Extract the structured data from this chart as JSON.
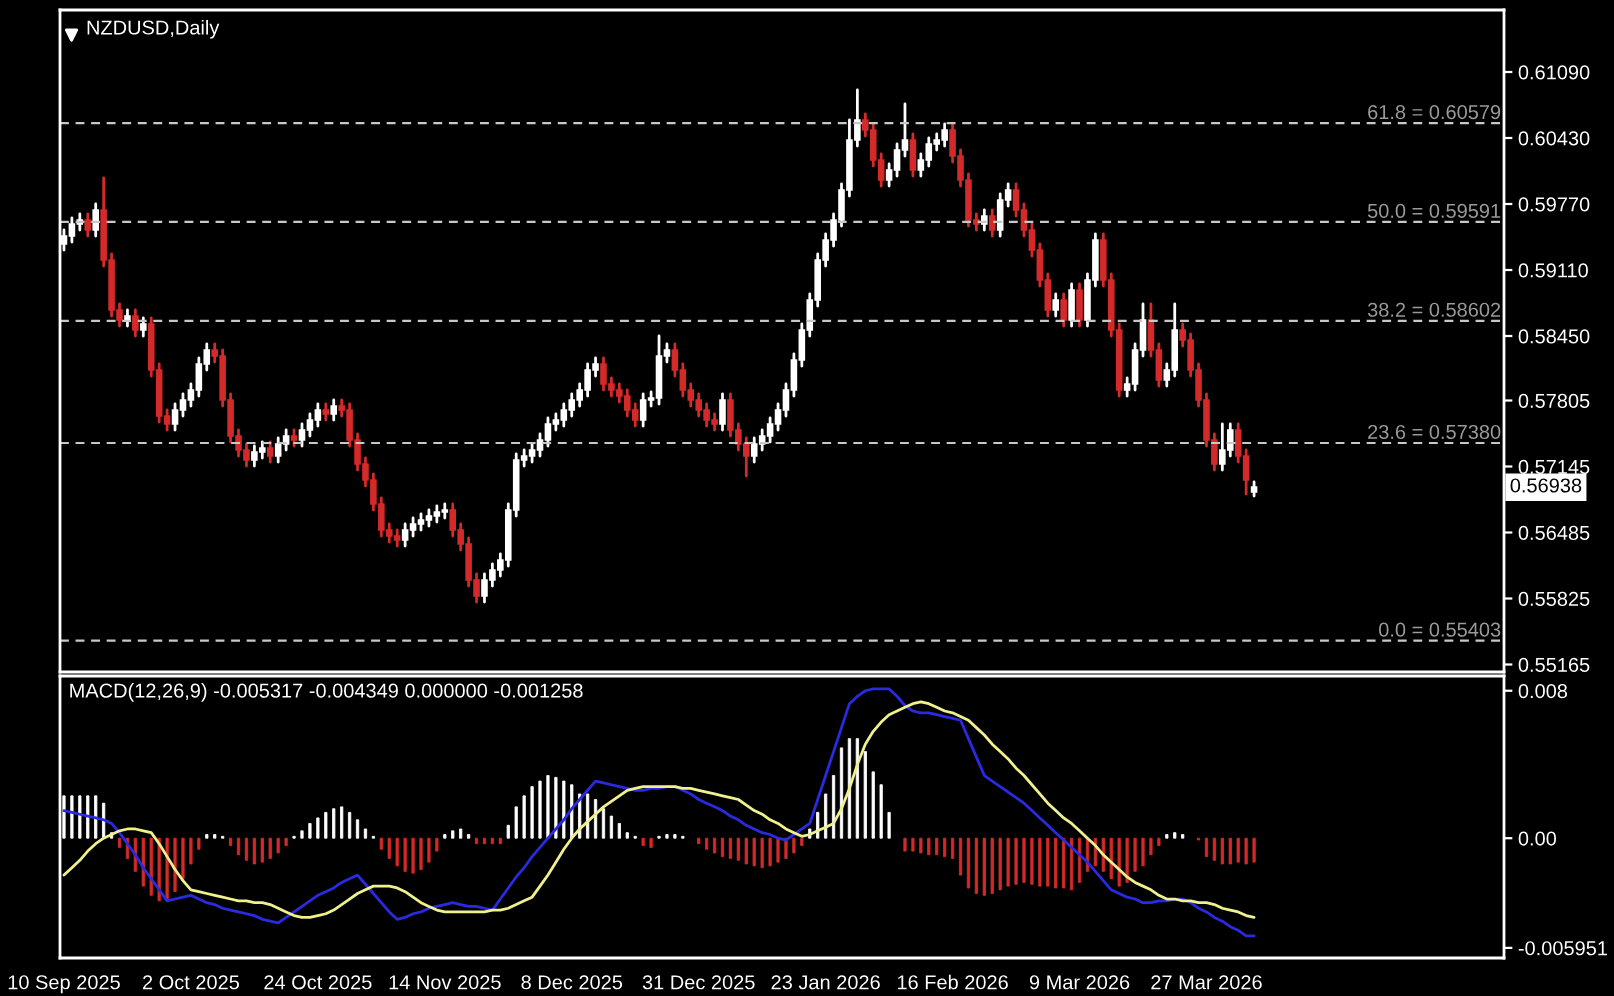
{
  "chart_data": [
    {
      "type": "candlestick",
      "title": "NZDUSD,Daily",
      "tick_labels": "y",
      "grid": false,
      "colors": [
        "#ffffff",
        "#ffffff",
        "#ffffff",
        "#d42a2a",
        "#ffffff",
        "#d42a2a",
        "#d42a2a",
        "#d42a2a",
        "#ffffff",
        "#d42a2a",
        "#ffffff",
        "#d42a2a",
        "#d42a2a",
        "#d42a2a",
        "#ffffff",
        "#ffffff",
        "#ffffff",
        "#ffffff",
        "#ffffff",
        "#d42a2a",
        "#d42a2a",
        "#d42a2a",
        "#d42a2a",
        "#d42a2a",
        "#ffffff",
        "#ffffff",
        "#d42a2a",
        "#ffffff",
        "#ffffff",
        "#d42a2a",
        "#ffffff",
        "#ffffff",
        "#ffffff",
        "#d42a2a",
        "#ffffff",
        "#d42a2a",
        "#d42a2a",
        "#d42a2a",
        "#d42a2a",
        "#d42a2a",
        "#d42a2a",
        "#d42a2a",
        "#d42a2a",
        "#ffffff",
        "#ffffff",
        "#ffffff",
        "#ffffff",
        "#ffffff",
        "#ffffff",
        "#d42a2a",
        "#d42a2a",
        "#d42a2a",
        "#d42a2a",
        "#ffffff",
        "#ffffff",
        "#ffffff",
        "#ffffff",
        "#ffffff",
        "#ffffff",
        "#ffffff",
        "#ffffff",
        "#ffffff",
        "#ffffff",
        "#ffffff",
        "#ffffff",
        "#ffffff",
        "#ffffff",
        "#ffffff",
        "#d42a2a",
        "#d42a2a",
        "#d42a2a",
        "#d42a2a",
        "#d42a2a",
        "#ffffff",
        "#ffffff",
        "#ffffff",
        "#ffffff",
        "#d42a2a",
        "#d42a2a",
        "#d42a2a",
        "#d42a2a",
        "#d42a2a",
        "#d42a2a",
        "#ffffff",
        "#d42a2a",
        "#d42a2a",
        "#d42a2a",
        "#ffffff",
        "#ffffff",
        "#ffffff",
        "#ffffff",
        "#ffffff",
        "#ffffff",
        "#ffffff",
        "#ffffff",
        "#ffffff",
        "#ffffff",
        "#ffffff",
        "#ffffff",
        "#ffffff",
        "#ffffff",
        "#d42a2a",
        "#d42a2a",
        "#d42a2a",
        "#ffffff",
        "#ffffff",
        "#ffffff",
        "#d42a2a",
        "#ffffff",
        "#ffffff",
        "#ffffff",
        "#ffffff",
        "#d42a2a",
        "#d42a2a",
        "#d42a2a",
        "#d42a2a",
        "#ffffff",
        "#d42a2a",
        "#ffffff",
        "#ffffff",
        "#d42a2a",
        "#d42a2a",
        "#d42a2a",
        "#d42a2a",
        "#d42a2a",
        "#ffffff",
        "#d42a2a",
        "#ffffff",
        "#d42a2a",
        "#ffffff",
        "#ffffff",
        "#d42a2a",
        "#d42a2a",
        "#d42a2a",
        "#ffffff",
        "#ffffff",
        "#ffffff",
        "#d42a2a",
        "#d42a2a",
        "#ffffff",
        "#ffffff",
        "#d42a2a",
        "#d42a2a",
        "#d42a2a",
        "#d42a2a",
        "#d42a2a",
        "#ffffff",
        "#ffffff",
        "#d42a2a",
        "#d42a2a",
        "#ffffff",
        null,
        null,
        null,
        null,
        null,
        null,
        null,
        null,
        null,
        null,
        null,
        null,
        null,
        null,
        null,
        null,
        null,
        null,
        null,
        null,
        null,
        null,
        null,
        null,
        null,
        null,
        null,
        null,
        null,
        null,
        null
      ],
      "categories": [
        null,
        null,
        null,
        null,
        null,
        null,
        null,
        null,
        null,
        null,
        null,
        null,
        null,
        null,
        null,
        null,
        null,
        null,
        null,
        null,
        null,
        null,
        null,
        null,
        null,
        null,
        null,
        null,
        null,
        null,
        null,
        null,
        null,
        null,
        null,
        null,
        null,
        null,
        null,
        null,
        null,
        null,
        null,
        null,
        null,
        null,
        null,
        null,
        null,
        null,
        null,
        null,
        null,
        null,
        null,
        null,
        null,
        null,
        null,
        null,
        null,
        null,
        null,
        null,
        null,
        null,
        null,
        null,
        null,
        null,
        null,
        null,
        null,
        null,
        null,
        null,
        null,
        null,
        null,
        null,
        null,
        null,
        null,
        null,
        null,
        null,
        null,
        null,
        null,
        null,
        null,
        null,
        null,
        null,
        null,
        null,
        null,
        null,
        null,
        null,
        null,
        null,
        null,
        null,
        null,
        null,
        null,
        null,
        null,
        null,
        null,
        null,
        null,
        null,
        null,
        null,
        null,
        null,
        null,
        null,
        null,
        null,
        null,
        null,
        null,
        null,
        null,
        null,
        null,
        null,
        null,
        null,
        null,
        null,
        null,
        null,
        null,
        null,
        null,
        null,
        null,
        null,
        null,
        null,
        null,
        null,
        null,
        null,
        null,
        null,
        null,
        null,
        null,
        null,
        null,
        null,
        null,
        null,
        null,
        null,
        null,
        null,
        null,
        null,
        null,
        null,
        null,
        null,
        null,
        null,
        null,
        null,
        null,
        null,
        null,
        null,
        null,
        null,
        null,
        null,
        null,
        null
      ],
      "ylim": [
        0.5509,
        0.6171
      ],
      "yticks": [
        {
          "value": 0.6109,
          "label": "0.61090"
        },
        {
          "value": 0.6043,
          "label": "0.60430"
        },
        {
          "value": 0.5977,
          "label": "0.59770"
        },
        {
          "value": 0.5911,
          "label": "0.59110"
        },
        {
          "value": 0.5845,
          "label": "0.58450"
        },
        0.57805,
        0.57145,
        0.56485,
        0.55825,
        0.55165
      ],
      "ref_lines": [
        {
          "axis": "y",
          "value": 0.60579,
          "label": "61.8 = 0.60579",
          "color": "#c8c8c8",
          "line_style": "dashed"
        },
        {
          "axis": "y",
          "value": 0.59591,
          "label": "50.0 = 0.59591",
          "color": "#c8c8c8",
          "line_style": "dashed"
        },
        {
          "axis": "y",
          "value": 0.58602,
          "label": "38.2 = 0.58602",
          "color": "#c8c8c8",
          "line_style": "dashed"
        },
        {
          "axis": "y",
          "value": 0.5738,
          "label": "23.6 = 0.57380",
          "color": "#c8c8c8",
          "line_style": "dashed"
        },
        {
          "axis": "y",
          "value": 0.55403,
          "label": "0.0 = 0.55403",
          "color": "#c8c8c8",
          "line_style": "dashed"
        }
      ],
      "annotations": [
        "0.56938"
      ],
      "ohlc": [
        [
          0.5937,
          0.5951,
          0.5931,
          0.5945
        ],
        [
          0.5945,
          0.5963,
          0.5939,
          0.5957
        ],
        [
          0.5957,
          0.5967,
          0.5951,
          0.5961
        ],
        [
          0.5961,
          0.5967,
          0.5945,
          0.5951
        ],
        [
          0.5951,
          0.5977,
          0.5945,
          0.5971
        ],
        [
          0.5971,
          0.6003,
          0.5915,
          0.5921
        ],
        [
          0.5921,
          0.5927,
          0.5865,
          0.5871
        ],
        [
          0.5871,
          0.5877,
          0.5855,
          0.5861
        ],
        [
          0.5861,
          0.5871,
          0.5855,
          0.5865
        ],
        [
          0.5865,
          0.5871,
          0.5845,
          0.5851
        ],
        [
          0.5851,
          0.5863,
          0.5845,
          0.5857
        ],
        [
          0.5857,
          0.5863,
          0.5805,
          0.5811
        ],
        [
          0.5811,
          0.5817,
          0.5759,
          0.5765
        ],
        [
          0.5765,
          0.5771,
          0.5751,
          0.5757
        ],
        [
          0.5757,
          0.5777,
          0.5751,
          0.5771
        ],
        [
          0.5771,
          0.5787,
          0.5765,
          0.5781
        ],
        [
          0.5781,
          0.5797,
          0.5775,
          0.5791
        ],
        [
          0.5791,
          0.5823,
          0.5785,
          0.5817
        ],
        [
          0.5817,
          0.5837,
          0.5811,
          0.5831
        ],
        [
          0.5831,
          0.5837,
          0.5819,
          0.5825
        ],
        [
          0.5825,
          0.5831,
          0.5775,
          0.5781
        ],
        [
          0.5781,
          0.5787,
          0.5739,
          0.5745
        ],
        [
          0.5745,
          0.5751,
          0.5725,
          0.5731
        ],
        [
          0.5731,
          0.5737,
          0.5715,
          0.5721
        ],
        [
          0.5721,
          0.5735,
          0.5715,
          0.5729
        ],
        [
          0.5729,
          0.5739,
          0.5723,
          0.5733
        ],
        [
          0.5733,
          0.5739,
          0.5719,
          0.5725
        ],
        [
          0.5725,
          0.5743,
          0.5719,
          0.5737
        ],
        [
          0.5737,
          0.5751,
          0.5731,
          0.5745
        ],
        [
          0.5745,
          0.5751,
          0.5735,
          0.5741
        ],
        [
          0.5741,
          0.5757,
          0.5735,
          0.5751
        ],
        [
          0.5751,
          0.5767,
          0.5745,
          0.5761
        ],
        [
          0.5761,
          0.5777,
          0.5755,
          0.5771
        ],
        [
          0.5771,
          0.5777,
          0.5761,
          0.5767
        ],
        [
          0.5767,
          0.5781,
          0.5761,
          0.5775
        ],
        [
          0.5775,
          0.5781,
          0.5765,
          0.5771
        ],
        [
          0.5771,
          0.5777,
          0.5735,
          0.5741
        ],
        [
          0.5741,
          0.5747,
          0.5711,
          0.5717
        ],
        [
          0.5717,
          0.5723,
          0.5695,
          0.5701
        ],
        [
          0.5701,
          0.5707,
          0.5671,
          0.5677
        ],
        [
          0.5677,
          0.5683,
          0.5645,
          0.5651
        ],
        [
          0.5651,
          0.5657,
          0.5639,
          0.5645
        ],
        [
          0.5645,
          0.5651,
          0.5635,
          0.5641
        ],
        [
          0.5641,
          0.5657,
          0.5635,
          0.5651
        ],
        [
          0.5651,
          0.5663,
          0.5645,
          0.5657
        ],
        [
          0.5657,
          0.5667,
          0.5651,
          0.5661
        ],
        [
          0.5661,
          0.5671,
          0.5655,
          0.5665
        ],
        [
          0.5665,
          0.5675,
          0.5659,
          0.5669
        ],
        [
          0.5669,
          0.5677,
          0.5663,
          0.5671
        ],
        [
          0.5671,
          0.5677,
          0.5645,
          0.5651
        ],
        [
          0.5651,
          0.5657,
          0.5631,
          0.5637
        ],
        [
          0.5637,
          0.5643,
          0.5595,
          0.5601
        ],
        [
          0.5601,
          0.5607,
          0.5579,
          0.5585
        ],
        [
          0.5585,
          0.5607,
          0.5579,
          0.5601
        ],
        [
          0.5601,
          0.5617,
          0.5595,
          0.5611
        ],
        [
          0.5611,
          0.5627,
          0.5605,
          0.5621
        ],
        [
          0.5621,
          0.5677,
          0.5615,
          0.5671
        ],
        [
          0.5671,
          0.5727,
          0.5665,
          0.5721
        ],
        [
          0.5721,
          0.5731,
          0.5715,
          0.5725
        ],
        [
          0.5725,
          0.5737,
          0.5719,
          0.5731
        ],
        [
          0.5731,
          0.5747,
          0.5725,
          0.5741
        ],
        [
          0.5741,
          0.5763,
          0.5735,
          0.5757
        ],
        [
          0.5757,
          0.5767,
          0.5751,
          0.5761
        ],
        [
          0.5761,
          0.5777,
          0.5755,
          0.5771
        ],
        [
          0.5771,
          0.5787,
          0.5765,
          0.5781
        ],
        [
          0.5781,
          0.5797,
          0.5775,
          0.5791
        ],
        [
          0.5791,
          0.5817,
          0.5785,
          0.5811
        ],
        [
          0.5811,
          0.5823,
          0.5805,
          0.5817
        ],
        [
          0.5817,
          0.5823,
          0.5791,
          0.5797
        ],
        [
          0.5797,
          0.5803,
          0.5785,
          0.5791
        ],
        [
          0.5791,
          0.5797,
          0.5779,
          0.5785
        ],
        [
          0.5785,
          0.5791,
          0.5765,
          0.5771
        ],
        [
          0.5771,
          0.5777,
          0.5755,
          0.5761
        ],
        [
          0.5761,
          0.5787,
          0.5755,
          0.5781
        ],
        [
          0.5781,
          0.5789,
          0.5775,
          0.5783
        ],
        [
          0.5783,
          0.5845,
          0.5777,
          0.5825
        ],
        [
          0.5825,
          0.5837,
          0.5819,
          0.5831
        ],
        [
          0.5831,
          0.5837,
          0.5805,
          0.5811
        ],
        [
          0.5811,
          0.5817,
          0.5785,
          0.5791
        ],
        [
          0.5791,
          0.5797,
          0.5775,
          0.5781
        ],
        [
          0.5781,
          0.5787,
          0.5765,
          0.5771
        ],
        [
          0.5771,
          0.5777,
          0.5755,
          0.5761
        ],
        [
          0.5761,
          0.5767,
          0.5751,
          0.5757
        ],
        [
          0.5757,
          0.5787,
          0.5751,
          0.5781
        ],
        [
          0.5781,
          0.5787,
          0.5745,
          0.5751
        ],
        [
          0.5751,
          0.5757,
          0.5731,
          0.5737
        ],
        [
          0.5737,
          0.5743,
          0.5705,
          0.5725
        ],
        [
          0.5725,
          0.5743,
          0.5719,
          0.5737
        ],
        [
          0.5737,
          0.5751,
          0.5731,
          0.5745
        ],
        [
          0.5745,
          0.5763,
          0.5739,
          0.5757
        ],
        [
          0.5757,
          0.5777,
          0.5751,
          0.5771
        ],
        [
          0.5771,
          0.5797,
          0.5765,
          0.5791
        ],
        [
          0.5791,
          0.5827,
          0.5785,
          0.5821
        ],
        [
          0.5821,
          0.5857,
          0.5815,
          0.5851
        ],
        [
          0.5851,
          0.5887,
          0.5845,
          0.5881
        ],
        [
          0.5881,
          0.5927,
          0.5875,
          0.5921
        ],
        [
          0.5921,
          0.5947,
          0.5915,
          0.5941
        ],
        [
          0.5941,
          0.5967,
          0.5935,
          0.5961
        ],
        [
          0.5961,
          0.5997,
          0.5955,
          0.5991
        ],
        [
          0.5991,
          0.6061,
          0.5985,
          0.6041
        ],
        [
          0.6041,
          0.6091,
          0.6035,
          0.6061
        ],
        [
          0.6061,
          0.6067,
          0.6045,
          0.6051
        ],
        [
          0.6051,
          0.6057,
          0.6015,
          0.6021
        ],
        [
          0.6021,
          0.6027,
          0.5995,
          0.6001
        ],
        [
          0.6001,
          0.6017,
          0.5995,
          0.6011
        ],
        [
          0.6011,
          0.6037,
          0.6005,
          0.6031
        ],
        [
          0.6031,
          0.6077,
          0.6025,
          0.6041
        ],
        [
          0.6041,
          0.6047,
          0.6005,
          0.6011
        ],
        [
          0.6011,
          0.6027,
          0.6005,
          0.6021
        ],
        [
          0.6021,
          0.6043,
          0.6015,
          0.6037
        ],
        [
          0.6037,
          0.6047,
          0.6031,
          0.6041
        ],
        [
          0.6041,
          0.6057,
          0.6035,
          0.6051
        ],
        [
          0.6051,
          0.6057,
          0.6019,
          0.6025
        ],
        [
          0.6025,
          0.6031,
          0.5995,
          0.6001
        ],
        [
          0.6001,
          0.6007,
          0.5955,
          0.5961
        ],
        [
          0.5961,
          0.5967,
          0.5951,
          0.5957
        ],
        [
          0.5957,
          0.5971,
          0.5951,
          0.5965
        ],
        [
          0.5965,
          0.5971,
          0.5945,
          0.5951
        ],
        [
          0.5951,
          0.5987,
          0.5945,
          0.5981
        ],
        [
          0.5981,
          0.5997,
          0.5975,
          0.5991
        ],
        [
          0.5991,
          0.5997,
          0.5965,
          0.5971
        ],
        [
          0.5971,
          0.5977,
          0.5945,
          0.5951
        ],
        [
          0.5951,
          0.5957,
          0.5925,
          0.5931
        ],
        [
          0.5931,
          0.5937,
          0.5895,
          0.5901
        ],
        [
          0.5901,
          0.5907,
          0.5865,
          0.5871
        ],
        [
          0.5871,
          0.5887,
          0.5865,
          0.5881
        ],
        [
          0.5881,
          0.5887,
          0.5855,
          0.5861
        ],
        [
          0.5861,
          0.5897,
          0.5855,
          0.5891
        ],
        [
          0.5891,
          0.5897,
          0.5855,
          0.5861
        ],
        [
          0.5861,
          0.5907,
          0.5855,
          0.5901
        ],
        [
          0.5901,
          0.5947,
          0.5895,
          0.5941
        ],
        [
          0.5941,
          0.5947,
          0.5895,
          0.5901
        ],
        [
          0.5901,
          0.5907,
          0.5845,
          0.5851
        ],
        [
          0.5851,
          0.5857,
          0.5785,
          0.5791
        ],
        [
          0.5791,
          0.5803,
          0.5785,
          0.5797
        ],
        [
          0.5797,
          0.5837,
          0.5791,
          0.5831
        ],
        [
          0.5831,
          0.5877,
          0.5825,
          0.5861
        ],
        [
          0.5861,
          0.5877,
          0.5825,
          0.5831
        ],
        [
          0.5831,
          0.5837,
          0.5795,
          0.5801
        ],
        [
          0.5801,
          0.5817,
          0.5795,
          0.5811
        ],
        [
          0.5811,
          0.5877,
          0.5805,
          0.5851
        ],
        [
          0.5851,
          0.5857,
          0.5835,
          0.5841
        ],
        [
          0.5841,
          0.5847,
          0.5805,
          0.5811
        ],
        [
          0.5811,
          0.5817,
          0.5775,
          0.5781
        ],
        [
          0.5781,
          0.5787,
          0.5735,
          0.5741
        ],
        [
          0.5741,
          0.5747,
          0.5711,
          0.5717
        ],
        [
          0.5717,
          0.5757,
          0.5711,
          0.5731
        ],
        [
          0.5731,
          0.5757,
          0.5725,
          0.5751
        ],
        [
          0.5751,
          0.5757,
          0.5719,
          0.5725
        ],
        [
          0.5725,
          0.5731,
          0.5687,
          0.5701
        ],
        [
          0.5689,
          0.5699,
          0.5685,
          0.56938
        ],
        null,
        null,
        null,
        null,
        null,
        null,
        null,
        null,
        null,
        null,
        null,
        null,
        null,
        null,
        null,
        null,
        null,
        null,
        null,
        null,
        null,
        null,
        null,
        null,
        null,
        null,
        null,
        null,
        null,
        null,
        null
      ]
    },
    {
      "type": "bar",
      "title": "MACD(12,26,9) -0.005317 -0.004349 0.000000 -0.001258",
      "grid": false,
      "categories": [
        "10 Sep 2025",
        null,
        null,
        null,
        null,
        null,
        null,
        null,
        null,
        null,
        null,
        null,
        null,
        null,
        null,
        null,
        "2 Oct 2025",
        null,
        null,
        null,
        null,
        null,
        null,
        null,
        null,
        null,
        null,
        null,
        null,
        null,
        null,
        null,
        "24 Oct 2025",
        null,
        null,
        null,
        null,
        null,
        null,
        null,
        null,
        null,
        null,
        null,
        null,
        null,
        null,
        null,
        "14 Nov 2025",
        null,
        null,
        null,
        null,
        null,
        null,
        null,
        null,
        null,
        null,
        null,
        null,
        null,
        null,
        null,
        "8 Dec 2025",
        null,
        null,
        null,
        null,
        null,
        null,
        null,
        null,
        null,
        null,
        null,
        null,
        null,
        null,
        null,
        "31 Dec 2025",
        null,
        null,
        null,
        null,
        null,
        null,
        null,
        null,
        null,
        null,
        null,
        null,
        null,
        null,
        null,
        "23 Jan 2026",
        null,
        null,
        null,
        null,
        null,
        null,
        null,
        null,
        null,
        null,
        null,
        null,
        null,
        null,
        null,
        "16 Feb 2026",
        null,
        null,
        null,
        null,
        null,
        null,
        null,
        null,
        null,
        null,
        null,
        null,
        null,
        null,
        null,
        "9 Mar 2026",
        null,
        null,
        null,
        null,
        null,
        null,
        null,
        null,
        null,
        null,
        null,
        null,
        null,
        null,
        null,
        "27 Mar 2026",
        null,
        null,
        null,
        null,
        null,
        null
      ],
      "ylim": [
        -0.0065,
        0.0088
      ],
      "yticks": [
        {
          "value": 0.008,
          "label": "0.008"
        },
        {
          "value": 0,
          "label": "0.00"
        },
        -0.005951
      ],
      "series": [
        {
          "type": "bar",
          "values": [
            0.0023,
            0.0023,
            0.0023,
            0.0023,
            0.0023,
            0.0019,
            0.0003,
            -0.0005,
            -0.0011,
            -0.0018,
            -0.0026,
            -0.0031,
            -0.0034,
            -0.0033,
            -0.0029,
            -0.0022,
            -0.0014,
            -0.0006,
            0.0002,
            0.0002,
            0.0001,
            -0.0004,
            -0.0009,
            -0.0012,
            -0.0014,
            -0.0013,
            -0.0011,
            -0.0008,
            -0.0004,
            0.0001,
            0.0004,
            0.0008,
            0.0011,
            0.0014,
            0.0016,
            0.0017,
            0.0014,
            0.001,
            0.0005,
            0.0001,
            -0.0006,
            -0.0011,
            -0.0015,
            -0.0018,
            -0.0019,
            -0.0017,
            -0.0013,
            -0.0007,
            0.0002,
            0.0004,
            0.0005,
            0.0002,
            -0.0003,
            -0.0003,
            -0.0003,
            -0.0003,
            0.0007,
            0.0017,
            0.0023,
            0.0028,
            0.0031,
            0.0034,
            0.0033,
            0.0031,
            0.0029,
            0.0024,
            0.0024,
            0.0021,
            0.0016,
            0.0012,
            0.0008,
            0.0003,
            0.0001,
            -0.0004,
            -0.0005,
            0.0001,
            0.0002,
            0.0002,
            0.0001,
            null,
            -0.0003,
            -0.0006,
            -0.0008,
            -0.001,
            -0.0011,
            -0.0012,
            -0.0014,
            -0.0015,
            -0.0016,
            -0.0015,
            -0.0013,
            -0.0011,
            -0.0008,
            -0.0004,
            0.0005,
            0.0014,
            0.0024,
            0.0034,
            0.0049,
            0.0054,
            0.0054,
            0.0047,
            0.0036,
            0.0029,
            0.0014,
            null,
            -0.0007,
            -0.0007,
            -0.0008,
            -0.0009,
            -0.0009,
            -0.001,
            -0.0011,
            -0.002,
            -0.0027,
            -0.003,
            -0.0031,
            -0.003,
            -0.0028,
            -0.0026,
            -0.0025,
            -0.0024,
            -0.0025,
            -0.0026,
            -0.0026,
            -0.0027,
            -0.0027,
            -0.0028,
            -0.0024,
            -0.0018,
            -0.0015,
            -0.0018,
            -0.0022,
            -0.0026,
            -0.0024,
            -0.0018,
            -0.0015,
            -0.0009,
            -0.0004,
            0.0002,
            0.0003,
            0.0002,
            null,
            -0.0001,
            -0.001,
            -0.0012,
            -0.0014,
            -0.0014,
            -0.0013,
            -0.0014,
            -0.0013
          ],
          "colors": [
            "#ffffff",
            "#ffffff",
            "#ffffff",
            "#ffffff",
            "#ffffff",
            "#ffffff",
            "#ffffff",
            "#d42a2a",
            "#d42a2a",
            "#d42a2a",
            "#d42a2a",
            "#d42a2a",
            "#d42a2a",
            "#d42a2a",
            "#d42a2a",
            "#d42a2a",
            "#d42a2a",
            "#d42a2a",
            "#ffffff",
            "#ffffff",
            "#ffffff",
            "#d42a2a",
            "#d42a2a",
            "#d42a2a",
            "#d42a2a",
            "#d42a2a",
            "#d42a2a",
            "#d42a2a",
            "#d42a2a",
            "#ffffff",
            "#ffffff",
            "#ffffff",
            "#ffffff",
            "#ffffff",
            "#ffffff",
            "#ffffff",
            "#ffffff",
            "#ffffff",
            "#ffffff",
            "#ffffff",
            "#d42a2a",
            "#d42a2a",
            "#d42a2a",
            "#d42a2a",
            "#d42a2a",
            "#d42a2a",
            "#d42a2a",
            "#d42a2a",
            "#ffffff",
            "#ffffff",
            "#ffffff",
            "#ffffff",
            "#d42a2a",
            "#d42a2a",
            "#d42a2a",
            "#d42a2a",
            "#ffffff",
            "#ffffff",
            "#ffffff",
            "#ffffff",
            "#ffffff",
            "#ffffff",
            "#ffffff",
            "#ffffff",
            "#ffffff",
            "#ffffff",
            "#ffffff",
            "#ffffff",
            "#ffffff",
            "#ffffff",
            "#ffffff",
            "#ffffff",
            "#ffffff",
            "#d42a2a",
            "#d42a2a",
            "#ffffff",
            "#ffffff",
            "#ffffff",
            "#ffffff",
            "#ffffff",
            "#d42a2a",
            "#d42a2a",
            "#d42a2a",
            "#d42a2a",
            "#d42a2a",
            "#d42a2a",
            "#d42a2a",
            "#d42a2a",
            "#d42a2a",
            "#d42a2a",
            "#d42a2a",
            "#d42a2a",
            "#d42a2a",
            "#d42a2a",
            "#ffffff",
            "#ffffff",
            "#ffffff",
            "#ffffff",
            "#ffffff",
            "#ffffff",
            "#ffffff",
            "#ffffff",
            "#ffffff",
            "#ffffff",
            "#ffffff",
            "#ffffff",
            "#d42a2a",
            "#d42a2a",
            "#d42a2a",
            "#d42a2a",
            "#d42a2a",
            "#d42a2a",
            "#d42a2a",
            "#d42a2a",
            "#d42a2a",
            "#d42a2a",
            "#d42a2a",
            "#d42a2a",
            "#d42a2a",
            "#d42a2a",
            "#d42a2a",
            "#d42a2a",
            "#d42a2a",
            "#d42a2a",
            "#d42a2a",
            "#d42a2a",
            "#d42a2a",
            "#d42a2a",
            "#d42a2a",
            "#d42a2a",
            "#d42a2a",
            "#d42a2a",
            "#d42a2a",
            "#d42a2a",
            "#d42a2a",
            "#d42a2a",
            "#d42a2a",
            "#d42a2a",
            "#d42a2a",
            "#ffffff",
            "#ffffff",
            "#ffffff",
            "#ffffff",
            "#d42a2a",
            "#d42a2a",
            "#d42a2a",
            "#d42a2a",
            "#d42a2a",
            "#d42a2a",
            "#d42a2a",
            "#d42a2a"
          ]
        },
        {
          "type": "line",
          "color": "#2a2ae0",
          "values": [
            0.0015,
            0.0014,
            0.0013,
            0.0012,
            0.0011,
            0.001,
            0.0008,
            0.0003,
            -0.0003,
            -0.0009,
            -0.0016,
            -0.0022,
            -0.0028,
            -0.0034,
            -0.0033,
            -0.0032,
            -0.0031,
            -0.0033,
            -0.0035,
            -0.0036,
            -0.0038,
            -0.0039,
            -0.004,
            -0.0041,
            -0.0042,
            -0.0044,
            -0.0045,
            -0.0046,
            -0.0043,
            -0.004,
            -0.0037,
            -0.0034,
            -0.0031,
            -0.0029,
            -0.0027,
            -0.0024,
            -0.0022,
            -0.002,
            -0.0025,
            -0.003,
            -0.0035,
            -0.004,
            -0.0044,
            -0.0043,
            -0.0041,
            -0.004,
            -0.0038,
            -0.0037,
            -0.0036,
            -0.0035,
            -0.0036,
            -0.0037,
            -0.0037,
            -0.0038,
            -0.0039,
            -0.0033,
            -0.0027,
            -0.0021,
            -0.0016,
            -0.001,
            -0.0005,
            0.0,
            0.0005,
            0.001,
            0.0016,
            0.0021,
            0.0026,
            0.0031,
            0.003,
            0.0029,
            0.0028,
            0.0027,
            0.0026,
            0.0026,
            0.0027,
            0.0027,
            0.0028,
            0.0028,
            0.0026,
            0.0024,
            0.0021,
            0.0019,
            0.0017,
            0.0015,
            0.0012,
            0.001,
            0.0007,
            0.0005,
            0.0003,
            0.0002,
            0.0,
            -0.0001,
            0.0002,
            0.0005,
            0.0008,
            0.0021,
            0.0034,
            0.0047,
            0.006,
            0.0073,
            0.0077,
            0.008,
            0.0081,
            0.0081,
            0.0081,
            0.0077,
            0.0072,
            0.0069,
            0.0068,
            0.0068,
            0.0067,
            0.0066,
            0.0065,
            0.0064,
            0.0054,
            0.0044,
            0.0034,
            0.0031,
            0.0028,
            0.0025,
            0.0022,
            0.0019,
            0.0015,
            0.0011,
            0.0007,
            0.0003,
            -0.0001,
            -0.0005,
            -0.0009,
            -0.0013,
            -0.0018,
            -0.0023,
            -0.0028,
            -0.003,
            -0.0032,
            -0.0033,
            -0.0035,
            -0.0035,
            -0.0034,
            -0.0034,
            -0.0033,
            -0.0033,
            -0.0035,
            -0.0038,
            -0.004,
            -0.0043,
            -0.0045,
            -0.0048,
            -0.005,
            -0.0053,
            -0.0053
          ]
        },
        {
          "type": "line",
          "color": "#f0f08c",
          "values": [
            -0.002,
            -0.0016,
            -0.0012,
            -0.0007,
            -0.0003,
            0.0,
            0.0002,
            0.0004,
            0.0005,
            0.0005,
            0.0004,
            0.0003,
            -0.0003,
            -0.001,
            -0.0017,
            -0.0023,
            -0.0028,
            -0.0029,
            -0.003,
            -0.0031,
            -0.0032,
            -0.0033,
            -0.0034,
            -0.0034,
            -0.0035,
            -0.0035,
            -0.0036,
            -0.0038,
            -0.004,
            -0.0042,
            -0.0043,
            -0.0043,
            -0.0042,
            -0.0041,
            -0.0039,
            -0.0036,
            -0.0033,
            -0.003,
            -0.0028,
            -0.0026,
            -0.0026,
            -0.0026,
            -0.0027,
            -0.0029,
            -0.0032,
            -0.0035,
            -0.0037,
            -0.0039,
            -0.004,
            -0.004,
            -0.004,
            -0.004,
            -0.004,
            -0.004,
            -0.0039,
            -0.0039,
            -0.0038,
            -0.0036,
            -0.0034,
            -0.0032,
            -0.0026,
            -0.002,
            -0.0013,
            -0.0006,
            0.0,
            0.0005,
            0.0009,
            0.0013,
            0.0017,
            0.002,
            0.0023,
            0.0026,
            0.0027,
            0.0028,
            0.0028,
            0.0028,
            0.0028,
            0.0028,
            0.0027,
            0.0027,
            0.0026,
            0.0025,
            0.0024,
            0.0023,
            0.0022,
            0.0021,
            0.0018,
            0.0015,
            0.0013,
            0.001,
            0.0008,
            0.0005,
            0.0003,
            0.0001,
            0.0002,
            0.0004,
            0.0006,
            0.0008,
            0.0016,
            0.0027,
            0.004,
            0.0051,
            0.0058,
            0.0063,
            0.0067,
            0.0069,
            0.0071,
            0.0073,
            0.0074,
            0.0073,
            0.0071,
            0.0069,
            0.0068,
            0.0066,
            0.0064,
            0.006,
            0.0056,
            0.0051,
            0.0047,
            0.0043,
            0.0038,
            0.0034,
            0.0029,
            0.0024,
            0.0019,
            0.0015,
            0.0011,
            0.0008,
            0.0004,
            0.0,
            -0.0004,
            -0.0009,
            -0.0013,
            -0.0017,
            -0.0021,
            -0.0024,
            -0.0026,
            -0.0028,
            -0.0031,
            -0.0033,
            -0.0033,
            -0.0034,
            -0.0034,
            -0.0035,
            -0.0035,
            -0.0036,
            -0.0038,
            -0.0039,
            -0.004,
            -0.0042,
            -0.0043
          ]
        }
      ]
    }
  ]
}
